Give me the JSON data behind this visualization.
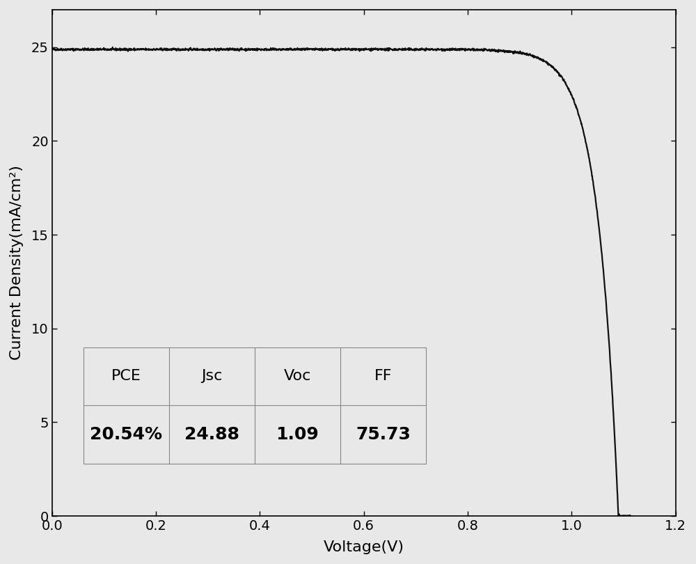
{
  "Jsc": 24.88,
  "Voc": 1.09,
  "FF": 75.73,
  "PCE": 20.54,
  "xlabel": "Voltage(V)",
  "ylabel": "Current Density(mA/cm²)",
  "xlim": [
    0.0,
    1.2
  ],
  "ylim": [
    0,
    27
  ],
  "yticks": [
    0,
    5,
    10,
    15,
    20,
    25
  ],
  "xticks": [
    0.0,
    0.2,
    0.4,
    0.6,
    0.8,
    1.0,
    1.2
  ],
  "line_color": "#111111",
  "line_width": 1.6,
  "bg_color": "#e8e8e8",
  "plot_bg_color": "#e8e8e8",
  "table_headers": [
    "PCE",
    "Jsc",
    "Voc",
    "FF"
  ],
  "table_values": [
    "20.54%",
    "24.88",
    "1.09",
    "75.73"
  ],
  "table_header_fontsize": 16,
  "table_value_fontsize": 18,
  "axis_label_fontsize": 16,
  "tick_fontsize": 14,
  "n_factor": 1.5,
  "noise_std": 0.03
}
